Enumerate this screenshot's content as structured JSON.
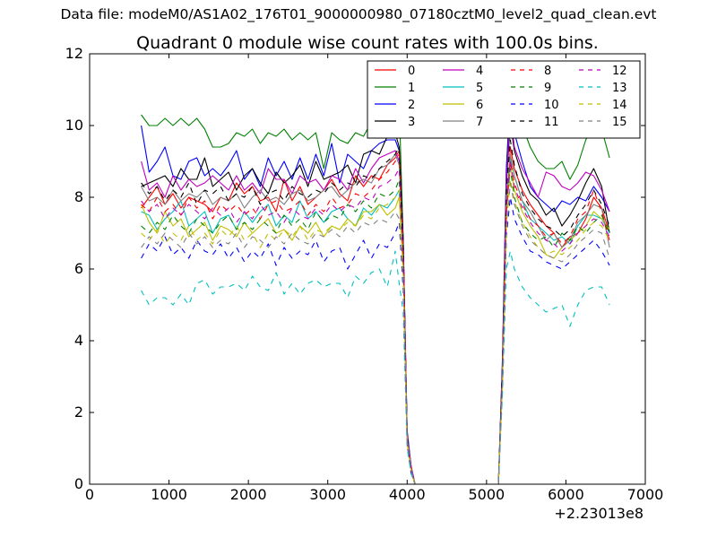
{
  "header": {
    "data_file": "Data file: modeM0/AS1A02_176T01_9000000980_07180cztM0_level2_quad_clean.evt"
  },
  "chart_data": {
    "type": "line",
    "title": "Quadrant 0 module wise count rates with 100.0s bins.",
    "xlabel": "",
    "ylabel": "",
    "xlim": [
      0,
      7000
    ],
    "ylim": [
      0,
      12
    ],
    "x_offset_label": "+2.23013e8",
    "xticks": [
      "0",
      "1000",
      "2000",
      "3000",
      "4000",
      "5000",
      "6000",
      "7000"
    ],
    "yticks": [
      "0",
      "2",
      "4",
      "6",
      "8",
      "10",
      "12"
    ],
    "grid": false,
    "legend_position": "top-right",
    "legend_columns": 4,
    "x": [
      650,
      750,
      850,
      950,
      1050,
      1150,
      1250,
      1350,
      1450,
      1550,
      1650,
      1750,
      1850,
      1950,
      2050,
      2150,
      2250,
      2350,
      2450,
      2550,
      2650,
      2750,
      2850,
      2950,
      3050,
      3150,
      3250,
      3350,
      3450,
      3550,
      3650,
      3750,
      3850,
      3900,
      3950,
      4000,
      4050,
      4100,
      4150,
      4250,
      4350,
      4450,
      4550,
      4650,
      4750,
      4850,
      4950,
      5050,
      5100,
      5150,
      5200,
      5250,
      5300,
      5350,
      5450,
      5550,
      5650,
      5750,
      5850,
      5950,
      6050,
      6150,
      6250,
      6350,
      6450,
      6550
    ],
    "series": [
      {
        "name": "0",
        "color": "#ff0000",
        "dash": "solid",
        "values": [
          7.7,
          8.0,
          8.3,
          7.8,
          8.1,
          7.7,
          8.0,
          7.9,
          7.8,
          7.6,
          8.0,
          7.9,
          8.4,
          8.1,
          8.3,
          7.9,
          8.0,
          7.6,
          8.5,
          7.9,
          8.3,
          7.8,
          8.0,
          8.2,
          8.5,
          8.1,
          7.9,
          8.6,
          8.3,
          8.6,
          8.5,
          8.9,
          9.1,
          9.3,
          6.5,
          1.2,
          0.4,
          0.0,
          0.0,
          0.0,
          0.0,
          0.0,
          0.0,
          0.0,
          0.0,
          0.0,
          0.0,
          0.0,
          0.0,
          0.0,
          3.0,
          7.5,
          9.4,
          8.8,
          8.2,
          7.8,
          7.5,
          7.2,
          7.0,
          6.6,
          6.9,
          7.0,
          7.4,
          8.0,
          7.7,
          7.0
        ]
      },
      {
        "name": "1",
        "color": "#008000",
        "dash": "solid",
        "values": [
          10.3,
          10.0,
          10.0,
          10.2,
          10.0,
          10.2,
          10.0,
          10.2,
          9.9,
          9.4,
          9.4,
          9.5,
          9.8,
          9.7,
          9.9,
          9.5,
          9.8,
          9.7,
          9.9,
          9.6,
          9.8,
          9.6,
          9.8,
          8.8,
          9.8,
          9.6,
          9.5,
          9.8,
          9.7,
          10.1,
          10.5,
          10.4,
          10.5,
          10.6,
          6.8,
          1.4,
          0.5,
          0.0,
          0.0,
          0.0,
          0.0,
          0.0,
          0.0,
          0.0,
          0.0,
          0.0,
          0.0,
          0.0,
          0.0,
          0.0,
          3.3,
          8.8,
          11.0,
          10.6,
          10.0,
          9.4,
          9.0,
          8.8,
          8.8,
          9.0,
          8.5,
          8.9,
          9.6,
          10.0,
          9.9,
          9.1
        ]
      },
      {
        "name": "2",
        "color": "#0000ff",
        "dash": "solid",
        "values": [
          10.0,
          8.7,
          9.0,
          9.4,
          8.6,
          8.5,
          9.0,
          9.1,
          8.6,
          8.8,
          8.6,
          8.9,
          9.3,
          8.5,
          8.8,
          8.3,
          9.1,
          8.6,
          9.0,
          8.5,
          9.1,
          8.5,
          9.2,
          8.6,
          9.5,
          8.4,
          9.2,
          9.0,
          8.8,
          9.3,
          9.5,
          9.6,
          9.6,
          9.3,
          6.8,
          1.5,
          0.5,
          0.0,
          0.0,
          0.0,
          0.0,
          0.0,
          0.0,
          0.0,
          0.0,
          0.0,
          0.0,
          0.0,
          0.0,
          0.0,
          3.5,
          8.8,
          10.7,
          9.8,
          9.0,
          8.3,
          8.0,
          7.8,
          7.6,
          7.9,
          7.8,
          8.0,
          7.9,
          8.3,
          8.0,
          7.6
        ]
      },
      {
        "name": "3",
        "color": "#000000",
        "dash": "solid",
        "values": [
          8.3,
          8.4,
          8.5,
          8.6,
          8.3,
          8.8,
          8.5,
          8.5,
          9.1,
          8.3,
          8.5,
          8.7,
          8.2,
          8.6,
          8.8,
          8.4,
          8.1,
          8.7,
          8.4,
          8.6,
          8.9,
          8.3,
          9.0,
          8.5,
          8.6,
          8.7,
          8.9,
          8.4,
          9.2,
          9.3,
          9.2,
          9.7,
          9.8,
          9.4,
          6.8,
          1.3,
          0.4,
          0.0,
          0.0,
          0.0,
          0.0,
          0.0,
          0.0,
          0.0,
          0.0,
          0.0,
          0.0,
          0.0,
          0.0,
          0.0,
          3.3,
          8.4,
          10.1,
          9.3,
          8.6,
          8.1,
          7.9,
          7.5,
          7.7,
          7.2,
          7.5,
          7.9,
          8.4,
          8.8,
          8.3,
          7.0
        ]
      },
      {
        "name": "4",
        "color": "#bf00bf",
        "dash": "solid",
        "values": [
          9.0,
          8.2,
          8.4,
          8.0,
          8.6,
          8.2,
          8.5,
          8.3,
          8.4,
          8.6,
          8.4,
          8.2,
          8.6,
          8.2,
          8.4,
          8.1,
          8.8,
          8.5,
          8.5,
          8.1,
          8.6,
          8.4,
          8.5,
          8.2,
          8.6,
          8.5,
          8.2,
          8.8,
          8.4,
          8.8,
          9.1,
          9.2,
          9.3,
          9.0,
          6.6,
          1.4,
          0.5,
          0.0,
          0.0,
          0.0,
          0.0,
          0.0,
          0.0,
          0.0,
          0.0,
          0.0,
          0.0,
          0.0,
          0.0,
          0.0,
          3.2,
          8.5,
          10.4,
          9.4,
          8.8,
          8.4,
          8.0,
          8.7,
          8.6,
          8.3,
          8.2,
          8.4,
          8.7,
          8.6,
          8.2,
          7.6
        ]
      },
      {
        "name": "5",
        "color": "#00bfbf",
        "dash": "solid",
        "values": [
          7.6,
          7.5,
          7.1,
          7.4,
          7.6,
          7.9,
          7.2,
          7.4,
          7.6,
          7.0,
          7.4,
          7.5,
          7.1,
          7.6,
          7.3,
          7.6,
          7.8,
          7.2,
          7.5,
          7.3,
          7.9,
          7.4,
          7.6,
          7.3,
          7.6,
          7.7,
          7.4,
          7.2,
          7.7,
          7.5,
          7.8,
          7.7,
          8.0,
          8.2,
          6.0,
          1.3,
          0.4,
          0.0,
          0.0,
          0.0,
          0.0,
          0.0,
          0.0,
          0.0,
          0.0,
          0.0,
          0.0,
          0.0,
          0.0,
          0.0,
          3.0,
          7.8,
          9.1,
          8.6,
          7.9,
          7.4,
          7.2,
          7.0,
          6.8,
          6.9,
          6.7,
          7.2,
          7.5,
          7.5,
          7.4,
          7.0
        ]
      },
      {
        "name": "6",
        "color": "#bfbf00",
        "dash": "solid",
        "values": [
          7.8,
          7.3,
          7.0,
          7.6,
          7.2,
          7.4,
          6.9,
          7.1,
          7.3,
          6.8,
          7.2,
          7.1,
          6.9,
          7.3,
          7.0,
          7.2,
          7.4,
          7.0,
          7.1,
          6.8,
          7.2,
          7.0,
          7.3,
          6.9,
          7.2,
          7.1,
          7.4,
          7.2,
          7.6,
          7.6,
          7.8,
          7.5,
          7.7,
          8.0,
          5.9,
          1.2,
          0.4,
          0.0,
          0.0,
          0.0,
          0.0,
          0.0,
          0.0,
          0.0,
          0.0,
          0.0,
          0.0,
          0.0,
          0.0,
          0.0,
          2.9,
          7.5,
          8.9,
          8.2,
          7.6,
          7.2,
          6.9,
          6.4,
          6.3,
          6.6,
          6.8,
          7.0,
          7.2,
          7.6,
          7.4,
          7.1
        ]
      },
      {
        "name": "7",
        "color": "#808080",
        "dash": "solid",
        "values": [
          8.3,
          7.9,
          8.0,
          7.8,
          8.2,
          7.9,
          8.1,
          8.0,
          8.2,
          7.8,
          8.0,
          7.9,
          8.1,
          7.7,
          8.0,
          8.2,
          7.9,
          8.0,
          7.8,
          8.1,
          8.2,
          7.9,
          8.0,
          8.2,
          8.3,
          8.0,
          8.2,
          8.4,
          8.5,
          8.4,
          8.8,
          8.9,
          9.2,
          8.9,
          6.5,
          1.3,
          0.4,
          0.0,
          0.0,
          0.0,
          0.0,
          0.0,
          0.0,
          0.0,
          0.0,
          0.0,
          0.0,
          0.0,
          0.0,
          0.0,
          3.1,
          8.0,
          9.2,
          8.6,
          7.9,
          7.6,
          7.2,
          6.8,
          7.0,
          6.6,
          6.8,
          7.3,
          7.5,
          7.8,
          7.7,
          6.6
        ]
      },
      {
        "name": "8",
        "color": "#ff0000",
        "dash": "dashed",
        "values": [
          7.8,
          7.6,
          8.0,
          7.6,
          7.8,
          7.5,
          8.0,
          7.7,
          7.9,
          7.4,
          7.8,
          7.6,
          7.8,
          7.5,
          7.7,
          7.4,
          7.8,
          7.9,
          7.6,
          7.7,
          7.9,
          7.5,
          7.8,
          7.6,
          8.0,
          7.7,
          7.8,
          8.1,
          8.0,
          8.2,
          8.5,
          8.7,
          9.0,
          9.2,
          6.4,
          1.2,
          0.4,
          0.0,
          0.0,
          0.0,
          0.0,
          0.0,
          0.0,
          0.0,
          0.0,
          0.0,
          0.0,
          0.0,
          0.0,
          0.0,
          2.9,
          7.6,
          9.0,
          8.4,
          7.8,
          7.4,
          7.2,
          6.9,
          7.0,
          6.7,
          6.9,
          7.4,
          7.6,
          8.2,
          7.6,
          6.8
        ]
      },
      {
        "name": "9",
        "color": "#008000",
        "dash": "dashed",
        "values": [
          7.2,
          7.0,
          7.3,
          7.1,
          7.5,
          7.2,
          7.0,
          7.4,
          7.2,
          7.0,
          7.3,
          7.5,
          7.1,
          7.3,
          7.1,
          7.4,
          7.2,
          7.0,
          7.5,
          7.2,
          7.4,
          7.1,
          7.6,
          7.3,
          7.5,
          7.4,
          7.8,
          7.6,
          7.9,
          7.7,
          8.1,
          8.0,
          8.2,
          8.5,
          6.0,
          1.3,
          0.4,
          0.0,
          0.0,
          0.0,
          0.0,
          0.0,
          0.0,
          0.0,
          0.0,
          0.0,
          0.0,
          0.0,
          0.0,
          0.0,
          3.0,
          7.8,
          8.8,
          8.0,
          7.3,
          7.0,
          6.8,
          6.9,
          6.6,
          7.0,
          6.8,
          7.2,
          7.0,
          7.3,
          7.5,
          7.0
        ]
      },
      {
        "name": "10",
        "color": "#0000ff",
        "dash": "dashed",
        "values": [
          6.3,
          6.7,
          6.5,
          6.9,
          6.4,
          6.6,
          6.3,
          6.8,
          6.5,
          6.4,
          6.7,
          6.3,
          6.6,
          6.2,
          6.5,
          6.3,
          6.7,
          6.1,
          6.6,
          6.3,
          6.5,
          6.4,
          6.8,
          6.2,
          6.5,
          6.6,
          6.0,
          6.4,
          6.8,
          6.3,
          6.7,
          6.6,
          7.0,
          7.3,
          5.4,
          1.1,
          0.3,
          0.0,
          0.0,
          0.0,
          0.0,
          0.0,
          0.0,
          0.0,
          0.0,
          0.0,
          0.0,
          0.0,
          0.0,
          0.0,
          2.7,
          6.9,
          8.0,
          7.4,
          6.9,
          6.5,
          6.4,
          6.2,
          6.1,
          6.0,
          6.2,
          6.4,
          6.6,
          6.8,
          6.5,
          6.1
        ]
      },
      {
        "name": "11",
        "color": "#000000",
        "dash": "dashed",
        "values": [
          8.4,
          8.1,
          8.3,
          7.9,
          8.2,
          8.0,
          8.4,
          7.8,
          8.2,
          8.1,
          8.3,
          7.9,
          8.1,
          8.0,
          8.3,
          7.8,
          8.1,
          8.2,
          7.9,
          8.3,
          8.1,
          8.0,
          8.2,
          8.1,
          8.4,
          8.2,
          8.4,
          8.3,
          8.6,
          8.5,
          8.8,
          9.0,
          9.2,
          9.4,
          6.6,
          1.3,
          0.4,
          0.0,
          0.0,
          0.0,
          0.0,
          0.0,
          0.0,
          0.0,
          0.0,
          0.0,
          0.0,
          0.0,
          0.0,
          0.0,
          3.1,
          8.2,
          9.6,
          8.9,
          8.1,
          7.7,
          7.4,
          7.2,
          7.1,
          6.9,
          7.1,
          7.5,
          7.8,
          8.2,
          7.8,
          7.2
        ]
      },
      {
        "name": "12",
        "color": "#bf00bf",
        "dash": "dashed",
        "values": [
          7.9,
          7.6,
          7.8,
          7.4,
          7.7,
          7.5,
          7.8,
          7.6,
          7.4,
          7.7,
          7.5,
          7.7,
          7.3,
          7.6,
          7.4,
          7.8,
          7.5,
          7.6,
          7.3,
          7.7,
          7.5,
          7.4,
          7.7,
          7.5,
          7.8,
          7.6,
          7.8,
          7.7,
          8.0,
          7.9,
          8.3,
          8.4,
          8.6,
          8.8,
          6.2,
          1.2,
          0.4,
          0.0,
          0.0,
          0.0,
          0.0,
          0.0,
          0.0,
          0.0,
          0.0,
          0.0,
          0.0,
          0.0,
          0.0,
          0.0,
          2.9,
          7.7,
          9.0,
          8.3,
          7.7,
          7.3,
          7.0,
          6.8,
          6.7,
          6.5,
          6.7,
          7.0,
          7.2,
          7.4,
          7.3,
          6.9
        ]
      },
      {
        "name": "13",
        "color": "#00bfbf",
        "dash": "dashed",
        "values": [
          5.4,
          5.0,
          5.2,
          5.2,
          5.0,
          5.3,
          5.0,
          5.6,
          5.7,
          5.3,
          5.5,
          5.5,
          5.6,
          5.4,
          5.8,
          5.5,
          5.4,
          5.9,
          5.3,
          5.6,
          5.3,
          5.6,
          5.7,
          5.5,
          5.6,
          5.6,
          5.2,
          5.8,
          5.6,
          5.9,
          6.0,
          5.5,
          6.5,
          5.6,
          4.8,
          1.0,
          0.3,
          0.0,
          0.0,
          0.0,
          0.0,
          0.0,
          0.0,
          0.0,
          0.0,
          0.0,
          0.0,
          0.0,
          0.0,
          0.0,
          2.5,
          6.0,
          6.5,
          6.0,
          5.5,
          5.2,
          5.0,
          4.8,
          4.9,
          5.0,
          4.4,
          5.0,
          5.4,
          5.5,
          5.5,
          5.0
        ]
      },
      {
        "name": "14",
        "color": "#bfbf00",
        "dash": "dashed",
        "values": [
          7.0,
          6.8,
          7.1,
          6.7,
          7.0,
          6.8,
          7.2,
          6.8,
          7.0,
          6.7,
          7.1,
          6.9,
          7.2,
          6.8,
          7.0,
          6.6,
          7.0,
          6.8,
          7.1,
          6.9,
          7.2,
          6.8,
          7.1,
          7.0,
          7.2,
          7.1,
          7.3,
          7.2,
          7.5,
          7.4,
          7.7,
          7.8,
          8.0,
          8.2,
          5.9,
          1.2,
          0.4,
          0.0,
          0.0,
          0.0,
          0.0,
          0.0,
          0.0,
          0.0,
          0.0,
          0.0,
          0.0,
          0.0,
          0.0,
          0.0,
          2.8,
          7.2,
          8.5,
          7.9,
          7.3,
          6.9,
          6.6,
          6.4,
          6.5,
          6.4,
          6.6,
          6.8,
          7.1,
          7.3,
          7.2,
          6.8
        ]
      },
      {
        "name": "15",
        "color": "#808080",
        "dash": "dashed",
        "values": [
          6.6,
          6.9,
          6.7,
          7.0,
          6.8,
          6.6,
          7.0,
          6.7,
          6.9,
          6.6,
          6.8,
          6.7,
          7.0,
          6.6,
          6.9,
          6.8,
          6.6,
          6.9,
          6.7,
          7.0,
          6.8,
          6.7,
          7.0,
          6.9,
          7.1,
          6.9,
          7.2,
          7.0,
          7.3,
          7.2,
          7.4,
          7.3,
          7.6,
          7.4,
          5.6,
          1.2,
          0.4,
          0.0,
          0.0,
          0.0,
          0.0,
          0.0,
          0.0,
          0.0,
          0.0,
          0.0,
          0.0,
          0.0,
          0.0,
          0.0,
          2.8,
          7.0,
          8.4,
          7.8,
          7.2,
          6.8,
          6.6,
          6.4,
          6.3,
          6.2,
          6.4,
          6.7,
          6.9,
          7.1,
          7.0,
          6.3
        ]
      }
    ]
  }
}
